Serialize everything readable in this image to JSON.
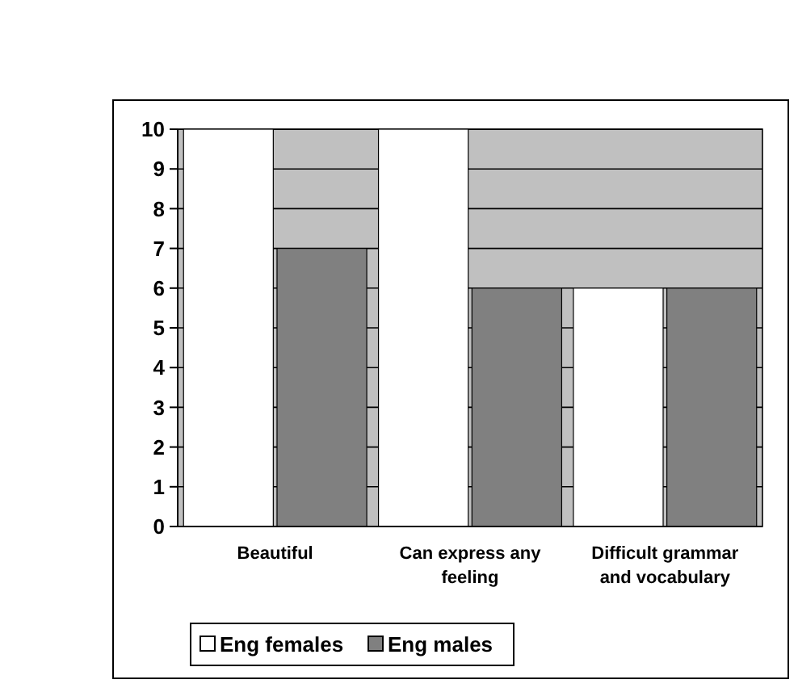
{
  "chart_data": {
    "type": "bar",
    "categories": [
      "Beautiful",
      "Can express any feeling",
      "Difficult grammar and vocabulary"
    ],
    "series": [
      {
        "name": "Eng females",
        "color": "#ffffff",
        "values": [
          10,
          10,
          6
        ]
      },
      {
        "name": "Eng males",
        "color": "#808080",
        "values": [
          7,
          6,
          6
        ]
      }
    ],
    "ylim": [
      0,
      10
    ],
    "yticks": [
      0,
      1,
      2,
      3,
      4,
      5,
      6,
      7,
      8,
      9,
      10
    ],
    "grid": "y",
    "legend": "bottom"
  }
}
